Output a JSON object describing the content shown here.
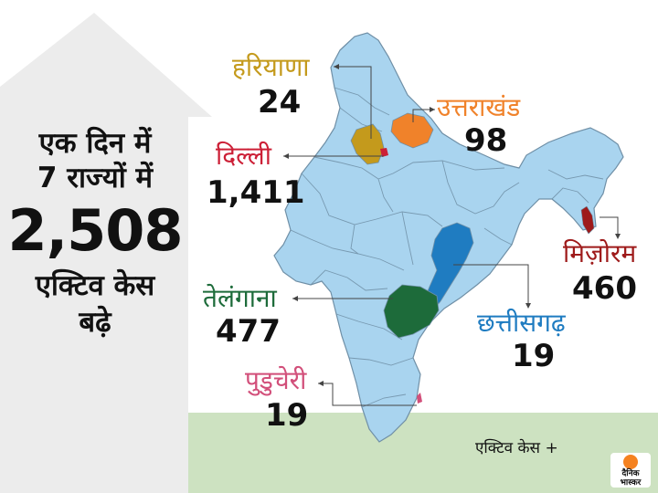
{
  "headline": {
    "line1": "एक दिन में",
    "line2": "7 राज्यों में",
    "line3": "2,508",
    "line4": "एक्टिव केस",
    "line5": "बढ़े"
  },
  "states": {
    "haryana": {
      "name": "हरियाणा",
      "value": "24",
      "color": "#c49a1c"
    },
    "uttarakhand": {
      "name": "उत्तराखंड",
      "value": "98",
      "color": "#f0822a"
    },
    "delhi": {
      "name": "दिल्ली",
      "value": "1,411",
      "color": "#cc1f36"
    },
    "mizoram": {
      "name": "मिज़ोरम",
      "value": "460",
      "color": "#9e1a1a"
    },
    "telangana": {
      "name": "तेलंगाना",
      "value": "477",
      "color": "#1d6b3a"
    },
    "chhattisgarh": {
      "name": "छत्तीसगढ़",
      "value": "19",
      "color": "#1f7cc1"
    },
    "puducherry": {
      "name": "पुडुचेरी",
      "value": "19",
      "color": "#d24f7a"
    }
  },
  "legend_text": "एक्टिव केस +",
  "logo_text": "दैनिक भास्कर",
  "colors": {
    "map_fill": "#a9d4ef",
    "map_border": "#6f8fa6",
    "sea_band": "#cde2c1",
    "arrow_bg": "#ececec",
    "logo_accent": "#f58220"
  }
}
